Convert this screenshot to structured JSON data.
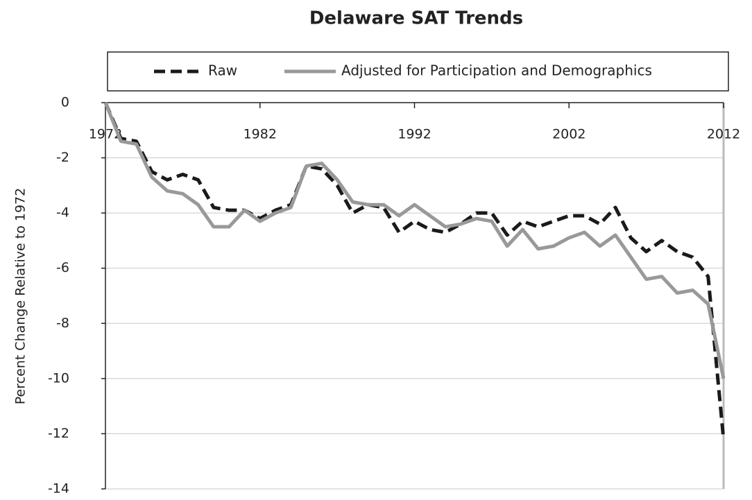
{
  "chart_data": {
    "type": "line",
    "title": "Delaware SAT Trends",
    "y_label": "Percent Change Relative to 1972",
    "x": [
      1972,
      1973,
      1974,
      1975,
      1976,
      1977,
      1978,
      1979,
      1980,
      1981,
      1982,
      1983,
      1984,
      1985,
      1986,
      1987,
      1988,
      1989,
      1990,
      1991,
      1992,
      1993,
      1994,
      1995,
      1996,
      1997,
      1998,
      1999,
      2000,
      2001,
      2002,
      2003,
      2004,
      2005,
      2006,
      2007,
      2008,
      2009,
      2010,
      2011,
      2012
    ],
    "series": [
      {
        "name": "Raw",
        "color": "#1a1a1a",
        "dashed": true,
        "values": [
          0,
          -1.3,
          -1.4,
          -2.5,
          -2.8,
          -2.6,
          -2.8,
          -3.8,
          -3.9,
          -3.9,
          -4.2,
          -3.9,
          -3.7,
          -2.3,
          -2.4,
          -3.0,
          -4.0,
          -3.7,
          -3.8,
          -4.7,
          -4.3,
          -4.6,
          -4.7,
          -4.4,
          -4.0,
          -4.0,
          -4.8,
          -4.3,
          -4.5,
          -4.3,
          -4.1,
          -4.1,
          -4.4,
          -3.8,
          -4.9,
          -5.4,
          -5.0,
          -5.4,
          -5.6,
          -6.3,
          -12.2
        ]
      },
      {
        "name": "Adjusted for Participation and Demographics",
        "color": "#999999",
        "dashed": false,
        "values": [
          0,
          -1.4,
          -1.5,
          -2.7,
          -3.2,
          -3.3,
          -3.7,
          -4.5,
          -4.5,
          -3.9,
          -4.3,
          -4.0,
          -3.8,
          -2.3,
          -2.2,
          -2.8,
          -3.6,
          -3.7,
          -3.7,
          -4.1,
          -3.7,
          -4.1,
          -4.5,
          -4.4,
          -4.2,
          -4.3,
          -5.2,
          -4.6,
          -5.3,
          -5.2,
          -4.9,
          -4.7,
          -5.2,
          -4.8,
          -5.6,
          -6.4,
          -6.3,
          -6.9,
          -6.8,
          -7.3,
          -10.0
        ]
      }
    ],
    "xlim": [
      1972,
      2012
    ],
    "xticks": [
      1972,
      1982,
      1992,
      2002,
      2012
    ],
    "ylim": [
      -14,
      0
    ],
    "yticks": [
      0,
      -2,
      -4,
      -6,
      -8,
      -10,
      -12,
      -14
    ],
    "grid": true,
    "legend": "top"
  }
}
